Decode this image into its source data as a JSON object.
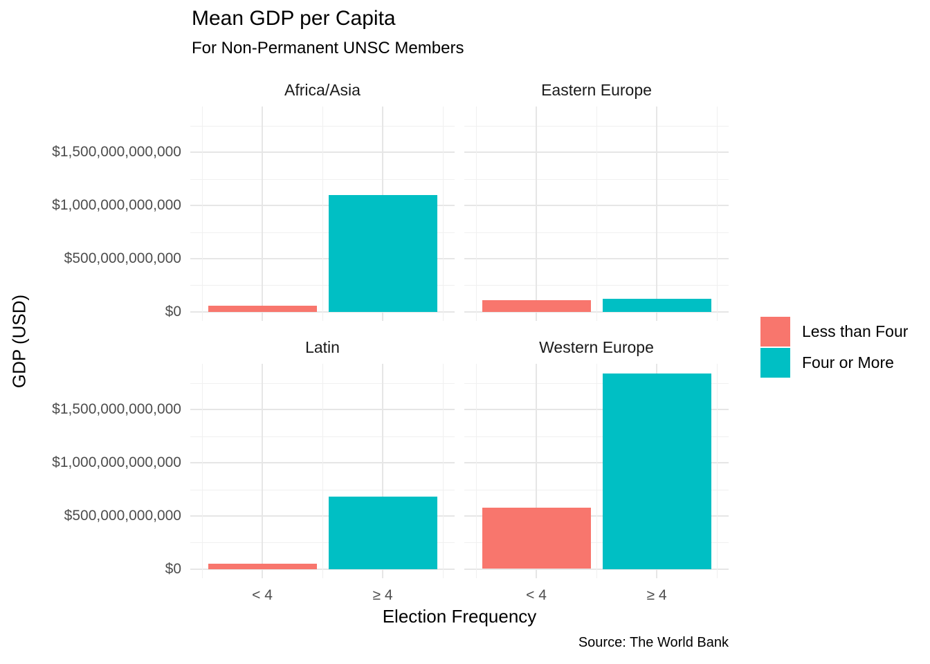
{
  "chart_data": {
    "type": "bar",
    "title": "Mean GDP per Capita",
    "subtitle": "For Non-Permanent UNSC Members",
    "xlabel": "Election Frequency",
    "ylabel": "GDP (USD)",
    "caption": "Source: The World Bank",
    "categories": [
      "< 4",
      "≥ 4"
    ],
    "legend_position": "right",
    "grid": true,
    "series": [
      {
        "name": "Less than Four",
        "color": "#F8766D"
      },
      {
        "name": "Four or More",
        "color": "#00BFC4"
      }
    ],
    "facets": [
      {
        "name": "Africa/Asia",
        "values": [
          58000000000,
          1100000000000
        ]
      },
      {
        "name": "Eastern Europe",
        "values": [
          108000000000,
          122000000000
        ]
      },
      {
        "name": "Latin",
        "values": [
          52000000000,
          680000000000
        ]
      },
      {
        "name": "Western Europe",
        "values": [
          575000000000,
          1840000000000
        ]
      }
    ],
    "y_ticks": [
      {
        "value": 0,
        "label": "$0"
      },
      {
        "value": 500000000000,
        "label": "$500,000,000,000"
      },
      {
        "value": 1000000000000,
        "label": "$1,000,000,000,000"
      },
      {
        "value": 1500000000000,
        "label": "$1,500,000,000,000"
      }
    ],
    "y_minor_ticks": [
      250000000000,
      750000000000,
      1250000000000,
      1750000000000
    ],
    "ylim": [
      -85000000000,
      1930000000000
    ],
    "colors": {
      "grid_major": "#E6E6E6",
      "grid_minor": "#F0F0F0",
      "axis_text": "#4D4D4D",
      "strip_text": "#1A1A1A",
      "text": "#000000"
    }
  }
}
